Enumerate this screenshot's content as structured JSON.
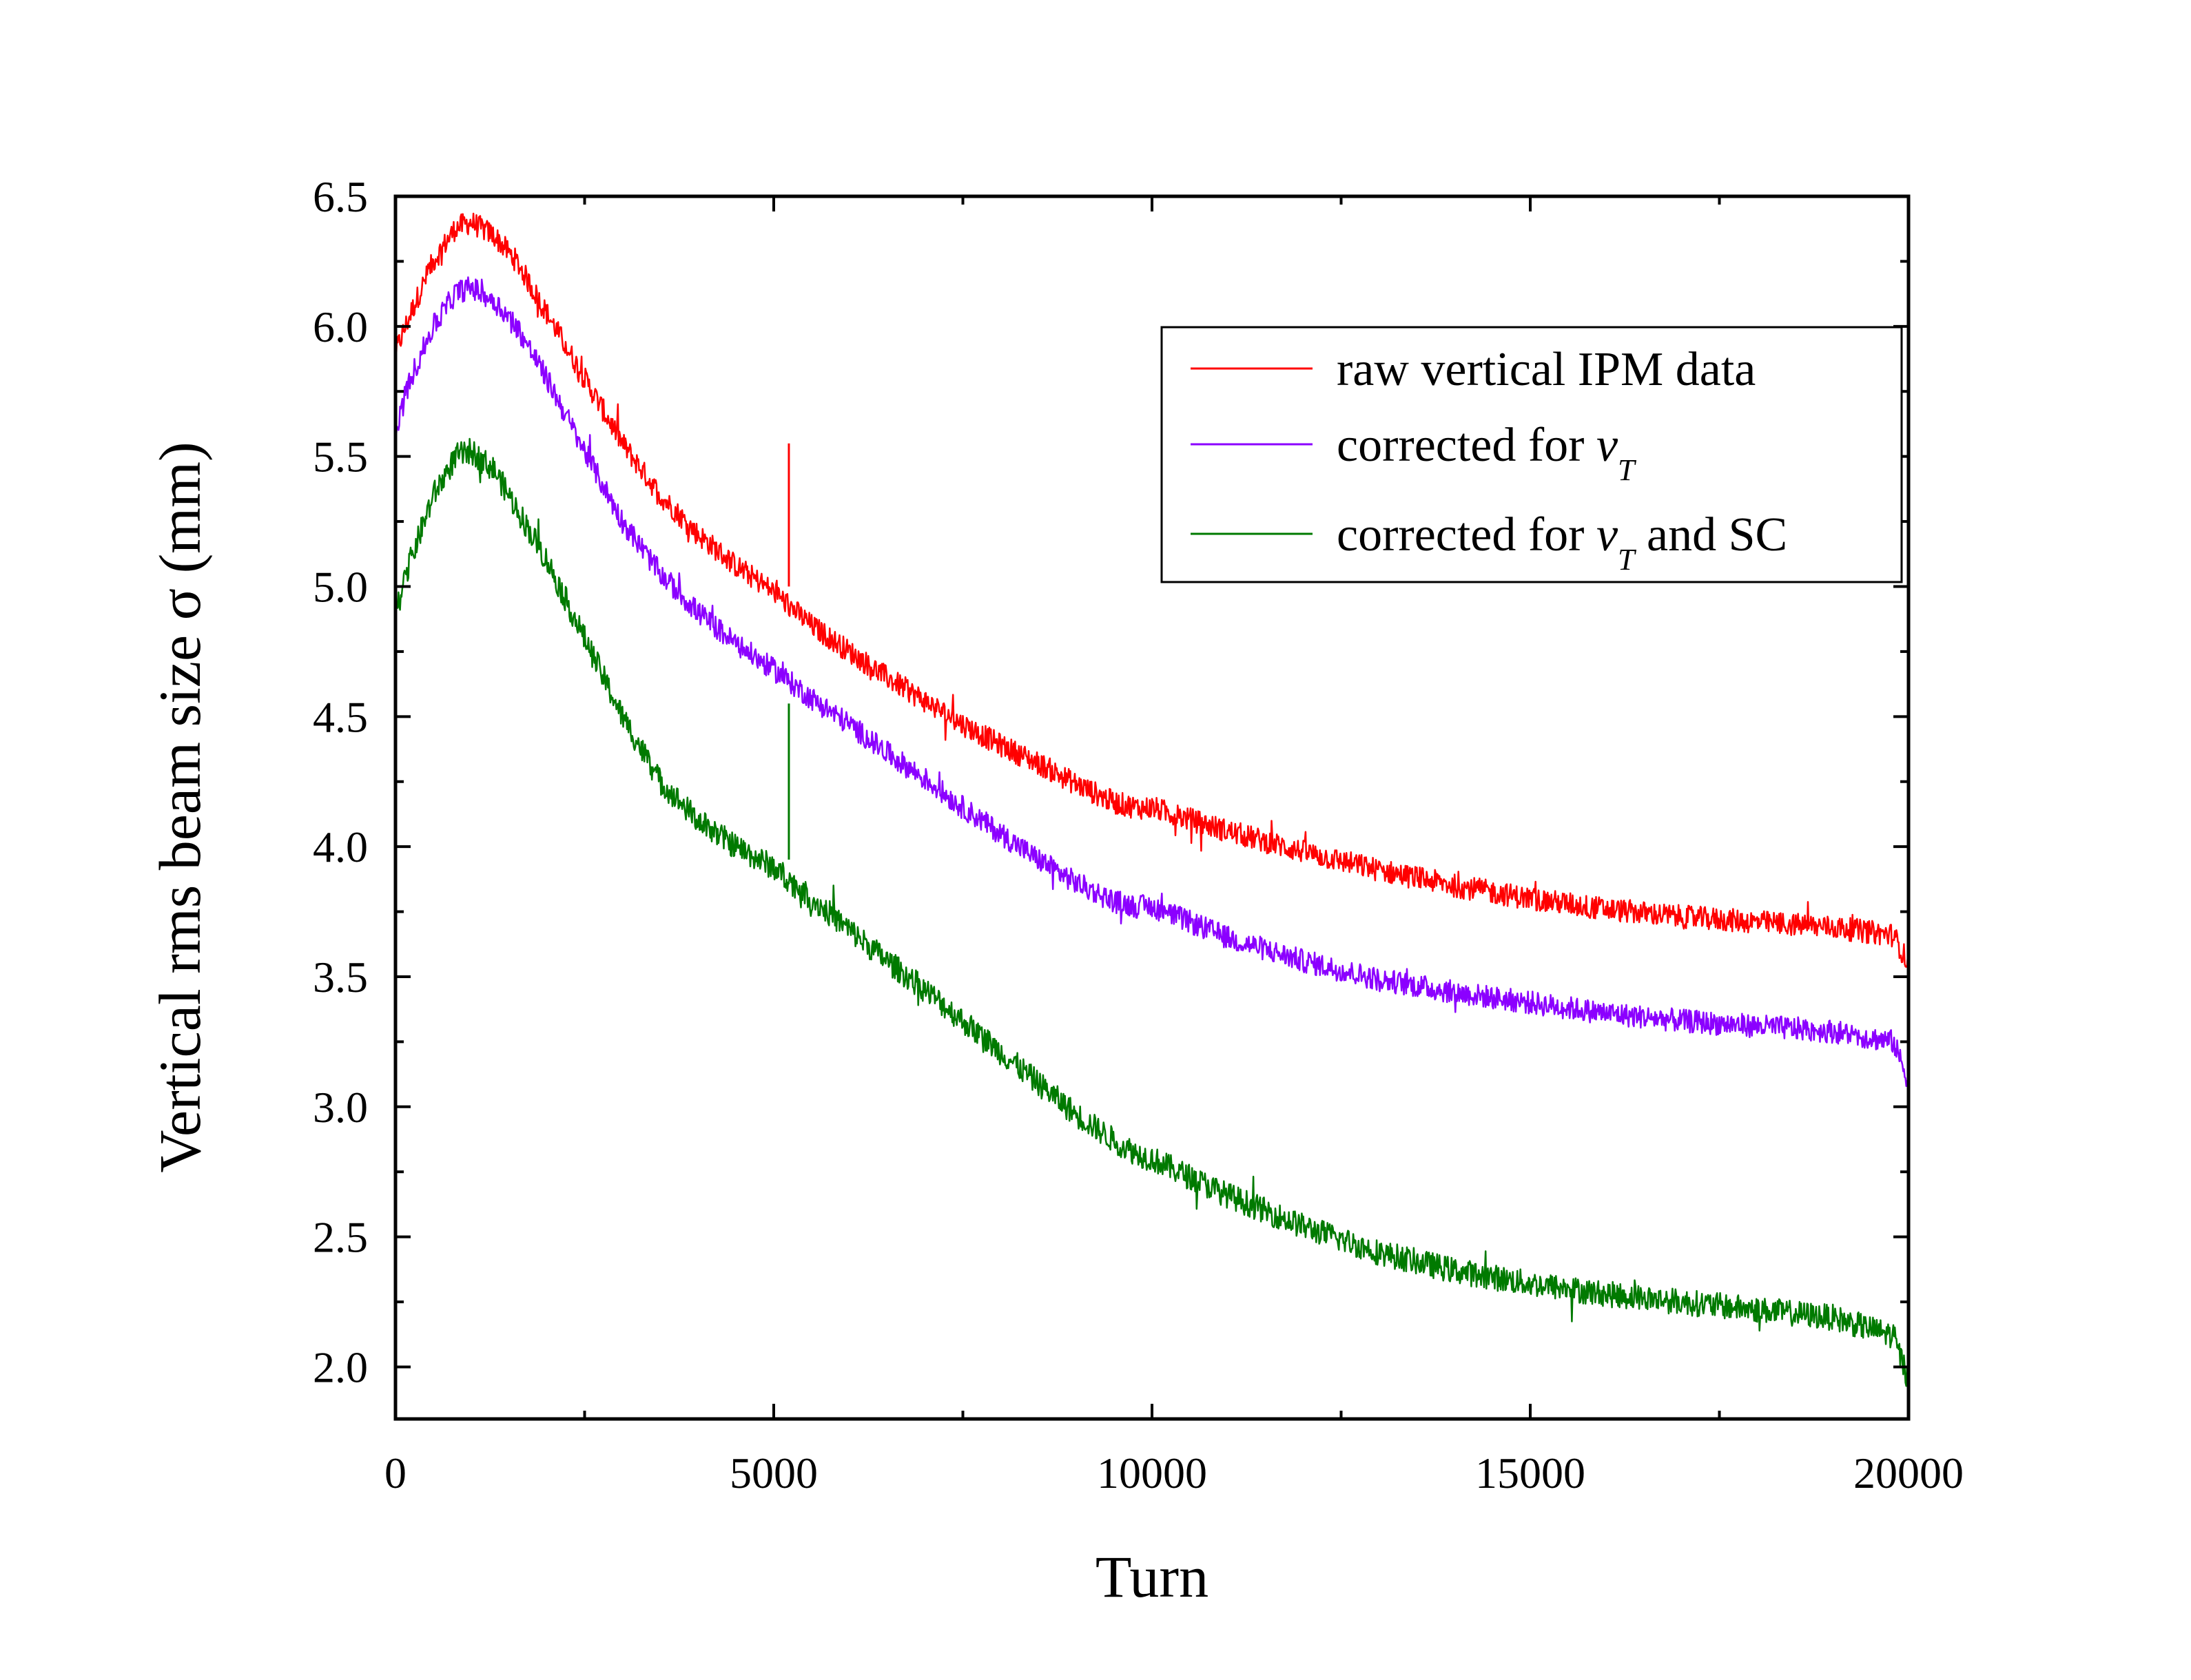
{
  "chart_data": {
    "type": "line",
    "title": "",
    "xlabel": "Turn",
    "ylabel": "Vertical rms beam size σ (mm)",
    "xlim": [
      0,
      20000
    ],
    "ylim": [
      1.8,
      6.5
    ],
    "xticks": [
      0,
      5000,
      10000,
      15000,
      20000
    ],
    "xtick_labels": [
      "0",
      "5000",
      "10000",
      "15000",
      "20000"
    ],
    "yticks": [
      2.0,
      2.5,
      3.0,
      3.5,
      4.0,
      4.5,
      5.0,
      5.5,
      6.0,
      6.5
    ],
    "ytick_labels": [
      "2.0",
      "2.5",
      "3.0",
      "3.5",
      "4.0",
      "4.5",
      "5.0",
      "5.5",
      "6.0",
      "6.5"
    ],
    "grid": false,
    "legend_position": "top-right",
    "series": [
      {
        "name": "raw vertical IPM data",
        "legend_main": "raw vertical IPM data",
        "legend_symbol": "",
        "legend_sub": "",
        "legend_tail": "",
        "color": "#ff0000",
        "noise": 0.045,
        "x": [
          0,
          200,
          500,
          800,
          1000,
          1300,
          1600,
          2000,
          2500,
          3000,
          3500,
          4000,
          4500,
          5000,
          5500,
          6000,
          6500,
          7000,
          7500,
          8000,
          8500,
          9000,
          9500,
          9800,
          10000,
          11000,
          12000,
          13000,
          14000,
          15000,
          16000,
          17000,
          18000,
          19000,
          19800,
          20000
        ],
        "y": [
          5.9,
          6.05,
          6.25,
          6.38,
          6.4,
          6.35,
          6.25,
          6.05,
          5.8,
          5.55,
          5.35,
          5.2,
          5.08,
          4.98,
          4.85,
          4.75,
          4.65,
          4.56,
          4.47,
          4.39,
          4.32,
          4.24,
          4.17,
          4.15,
          4.15,
          4.06,
          3.98,
          3.91,
          3.85,
          3.8,
          3.76,
          3.73,
          3.71,
          3.69,
          3.66,
          3.55
        ]
      },
      {
        "name": "corrected for vT",
        "legend_main": "corrected for ",
        "legend_symbol": "v",
        "legend_sub": "T",
        "legend_tail": "",
        "color": "#8b00ff",
        "noise": 0.045,
        "x": [
          0,
          200,
          500,
          800,
          1000,
          1300,
          1600,
          2000,
          2500,
          3000,
          3500,
          4000,
          4500,
          5000,
          5500,
          6000,
          6500,
          7000,
          7500,
          8000,
          8500,
          9000,
          9500,
          9800,
          10000,
          11000,
          12000,
          13000,
          14000,
          15000,
          16000,
          17000,
          18000,
          19000,
          19800,
          20000
        ],
        "y": [
          5.6,
          5.8,
          6.0,
          6.13,
          6.15,
          6.1,
          6.0,
          5.8,
          5.52,
          5.25,
          5.05,
          4.9,
          4.78,
          4.68,
          4.57,
          4.47,
          4.36,
          4.26,
          4.15,
          4.05,
          3.95,
          3.86,
          3.79,
          3.77,
          3.77,
          3.65,
          3.56,
          3.49,
          3.44,
          3.4,
          3.36,
          3.33,
          3.31,
          3.29,
          3.25,
          3.1
        ]
      },
      {
        "name": "corrected for vT and SC",
        "legend_main": "corrected for ",
        "legend_symbol": "v",
        "legend_sub": "T",
        "legend_tail": " and SC",
        "color": "#007a00",
        "noise": 0.05,
        "x": [
          0,
          200,
          500,
          800,
          1000,
          1300,
          1600,
          2000,
          2500,
          3000,
          3500,
          4000,
          4500,
          5000,
          5500,
          6000,
          6500,
          7000,
          7500,
          8000,
          8500,
          9000,
          9500,
          9800,
          10000,
          11000,
          12000,
          13000,
          14000,
          15000,
          16000,
          17000,
          18000,
          19000,
          19800,
          20000
        ],
        "y": [
          4.9,
          5.1,
          5.35,
          5.5,
          5.52,
          5.45,
          5.3,
          5.1,
          4.8,
          4.5,
          4.25,
          4.1,
          4.0,
          3.92,
          3.8,
          3.68,
          3.56,
          3.45,
          3.33,
          3.21,
          3.09,
          2.97,
          2.87,
          2.82,
          2.8,
          2.66,
          2.54,
          2.44,
          2.37,
          2.32,
          2.28,
          2.25,
          2.22,
          2.19,
          2.12,
          1.95
        ]
      }
    ]
  }
}
